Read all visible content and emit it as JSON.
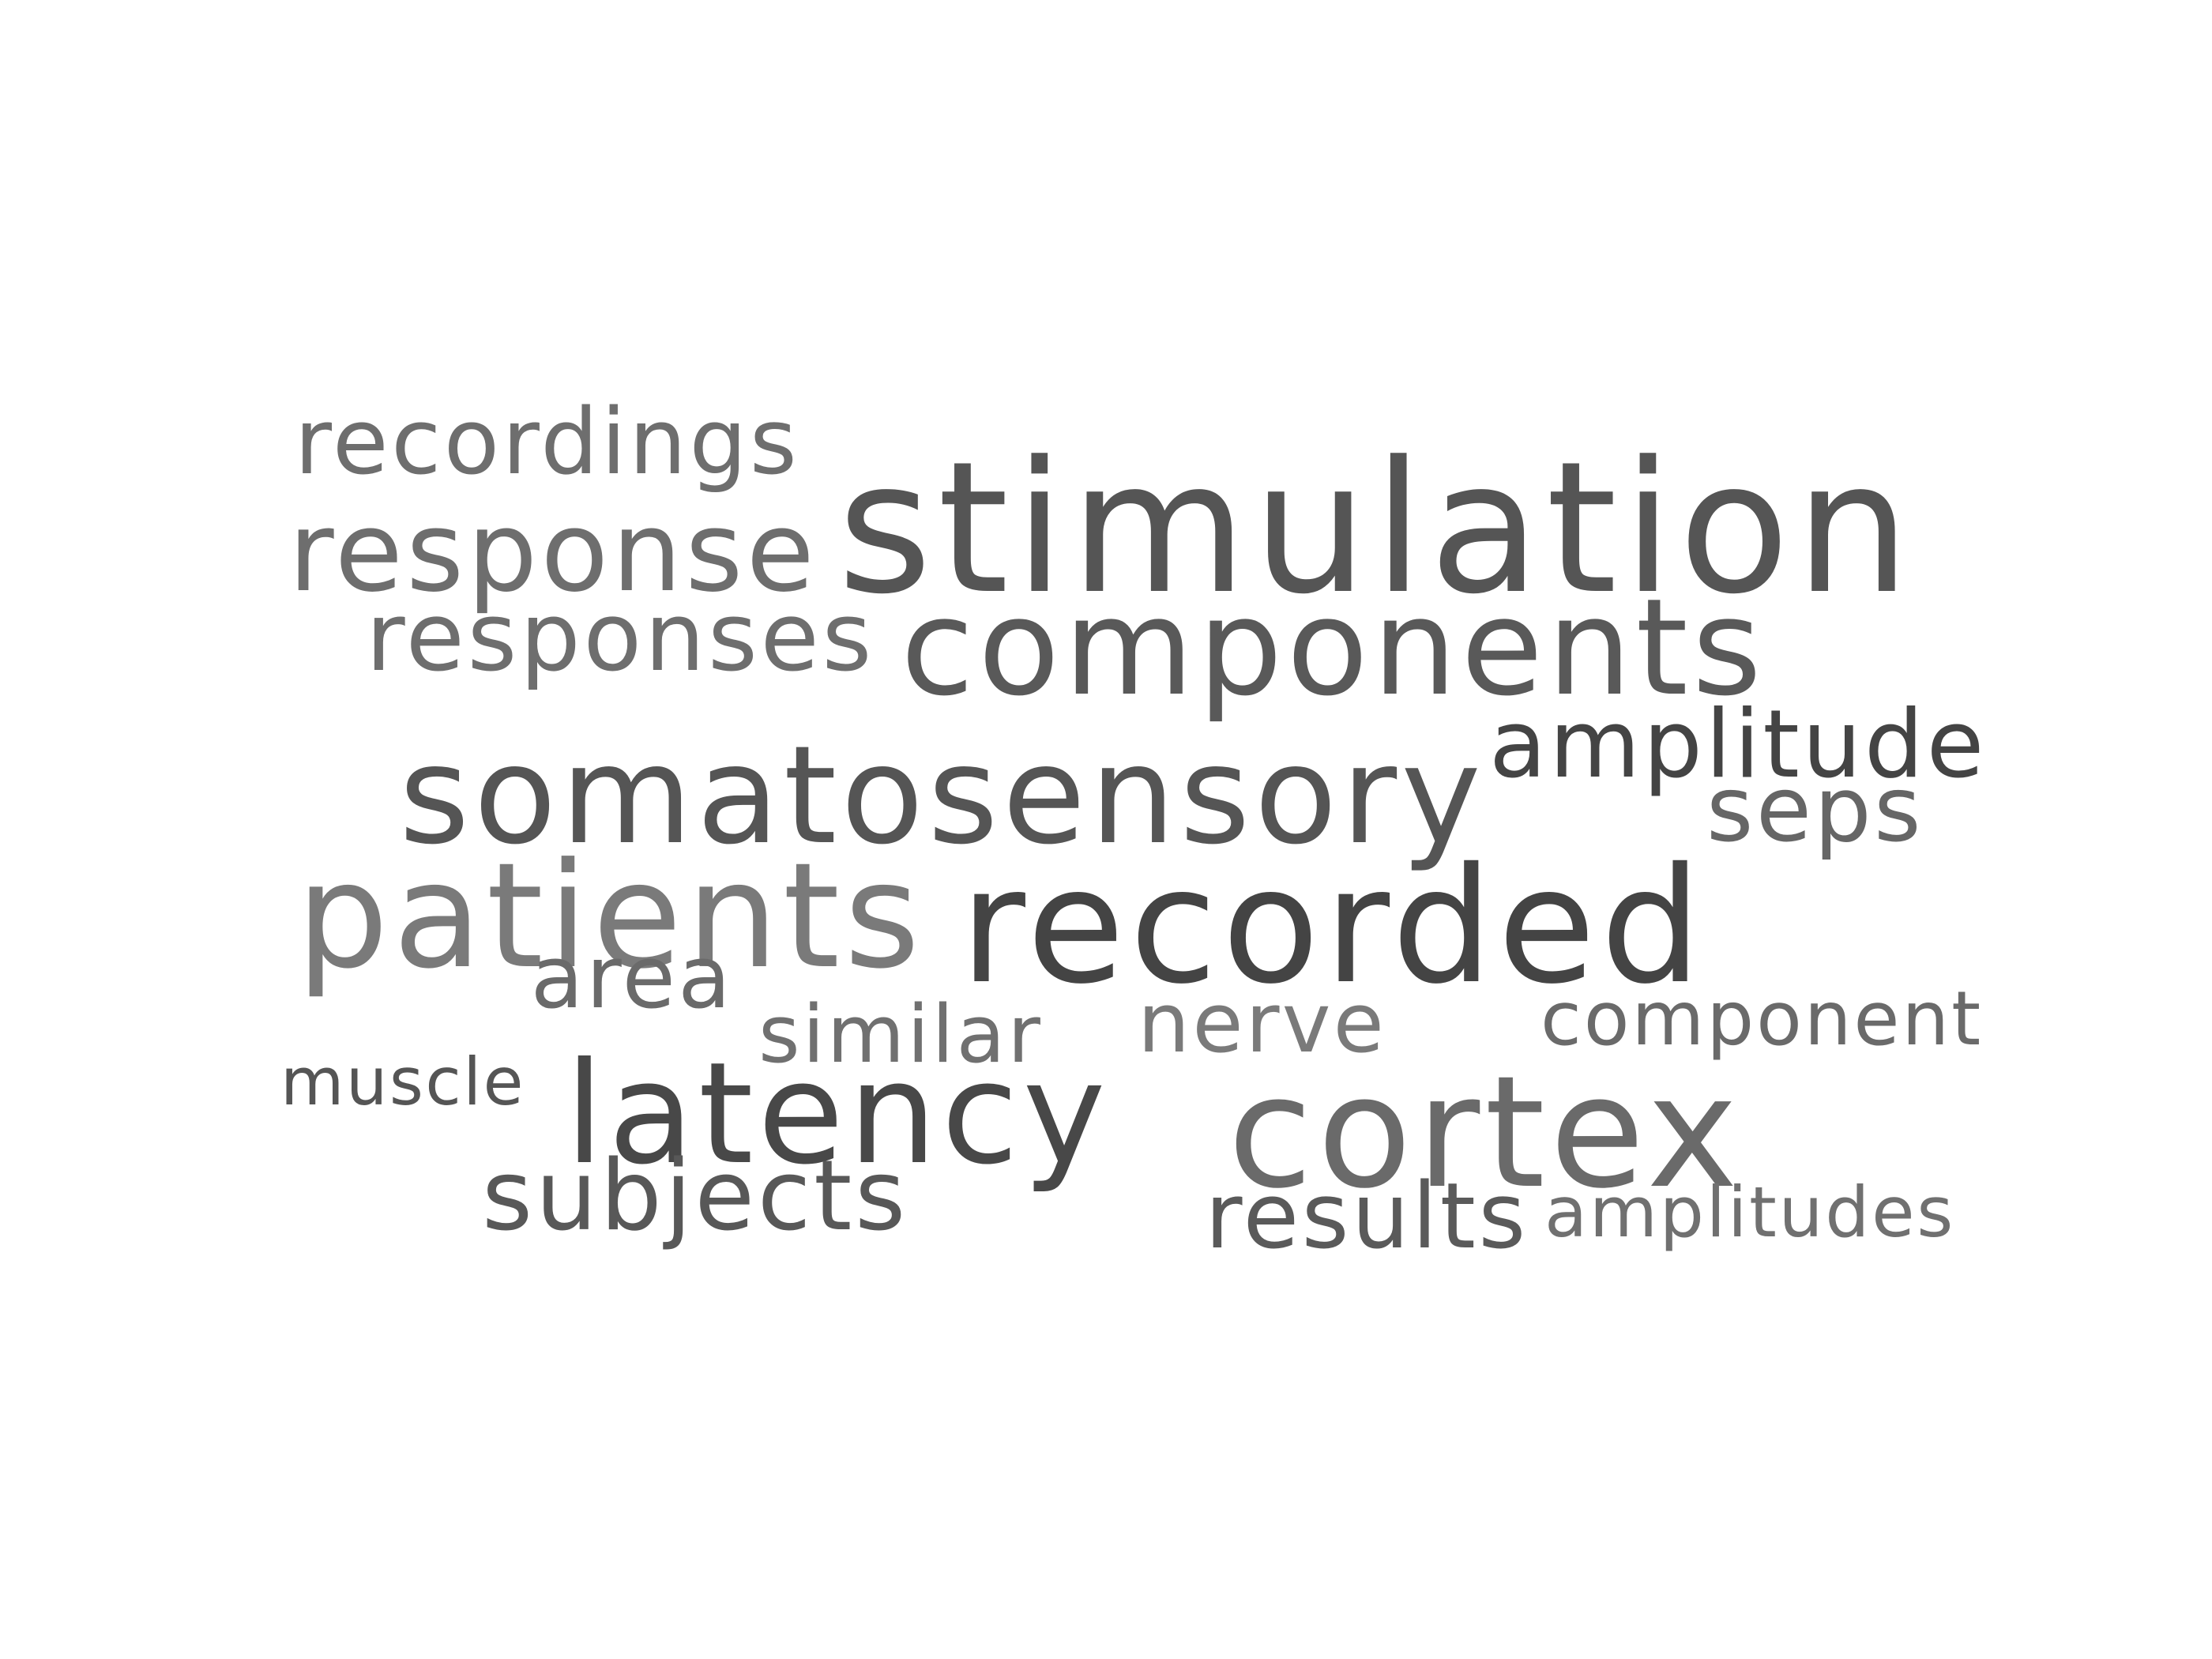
{
  "words": [
    {
      "id": "stimulation",
      "text": "stimulation",
      "color": "#555555"
    },
    {
      "id": "components",
      "text": "components",
      "color": "#595959"
    },
    {
      "id": "recorded",
      "text": "recorded",
      "color": "#444444"
    },
    {
      "id": "somatosensory",
      "text": "somatosensory",
      "color": "#555555"
    },
    {
      "id": "cortex",
      "text": "cortex",
      "color": "#6a6a6a"
    },
    {
      "id": "patients",
      "text": "patients",
      "color": "#7a7a7a"
    },
    {
      "id": "latency",
      "text": "latency",
      "color": "#484848"
    },
    {
      "id": "response",
      "text": "response",
      "color": "#6e6e6e"
    },
    {
      "id": "responses",
      "text": "responses",
      "color": "#6e6e6e"
    },
    {
      "id": "amplitude",
      "text": "amplitude",
      "color": "#444444"
    },
    {
      "id": "recordings",
      "text": "recordings",
      "color": "#6e6e6e"
    },
    {
      "id": "seps",
      "text": "seps",
      "color": "#666666"
    },
    {
      "id": "area",
      "text": "area",
      "color": "#6a6a6a"
    },
    {
      "id": "nerve",
      "text": "nerve",
      "color": "#7a7a7a"
    },
    {
      "id": "component",
      "text": "component",
      "color": "#6a6a6a"
    },
    {
      "id": "similar",
      "text": "similar",
      "color": "#707070"
    },
    {
      "id": "muscle",
      "text": "muscle",
      "color": "#555555"
    },
    {
      "id": "subjects",
      "text": "subjects",
      "color": "#585858"
    },
    {
      "id": "results",
      "text": "results",
      "color": "#5a5a5a"
    },
    {
      "id": "amplitudes",
      "text": "amplitudes",
      "color": "#707070"
    }
  ]
}
